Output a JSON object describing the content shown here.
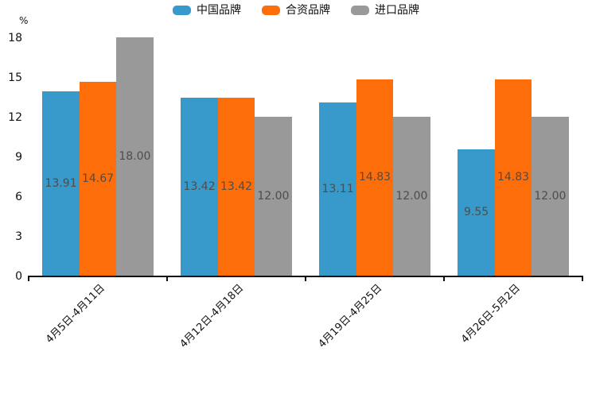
{
  "chart_data": {
    "type": "bar",
    "title": "",
    "unit_label": "%",
    "categories": [
      "4月5日-4月11日",
      "4月12日-4月18日",
      "4月19日-4月25日",
      "4月26日-5月2日"
    ],
    "series": [
      {
        "name": "中国品牌",
        "color": "#3899cb",
        "values": [
          13.91,
          13.42,
          13.11,
          9.55
        ]
      },
      {
        "name": "合资品牌",
        "color": "#fd6e0a",
        "values": [
          14.67,
          13.42,
          14.83,
          14.83
        ]
      },
      {
        "name": "进口品牌",
        "color": "#999999",
        "values": [
          18.0,
          12.0,
          12.0,
          12.0
        ]
      }
    ],
    "value_labels": [
      [
        "13.91",
        "13.42",
        "13.11",
        "9.55"
      ],
      [
        "14.67",
        "13.42",
        "14.83",
        "14.83"
      ],
      [
        "18.00",
        "12.00",
        "12.00",
        "12.00"
      ]
    ],
    "y_ticks": [
      0,
      3,
      6,
      9,
      12,
      15,
      18
    ],
    "ylim": [
      0,
      18
    ],
    "legend_position": "top",
    "grid": false,
    "value_label_color": "#4d4d4d",
    "axis_color": "#111111"
  }
}
